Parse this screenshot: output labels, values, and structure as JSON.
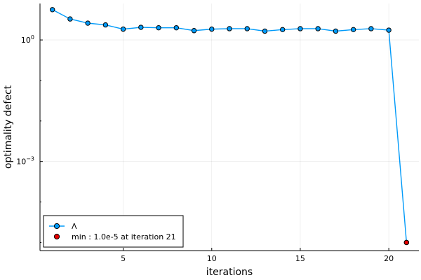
{
  "chart_data": {
    "type": "line",
    "title": "",
    "xlabel": "iterations",
    "ylabel": "optimality defect",
    "xlim": [
      0.3,
      21.7
    ],
    "ylim": [
      1e-05,
      8
    ],
    "yscale": "log",
    "x_ticks": [
      5,
      10,
      15,
      20
    ],
    "x_tick_labels": [
      "5",
      "10",
      "15",
      "20"
    ],
    "y_ticks": [
      0.001,
      1
    ],
    "y_tick_labels": [
      {
        "base": "10",
        "exp": "−3"
      },
      {
        "base": "10",
        "exp": "0"
      }
    ],
    "grid": true,
    "legend_position": "bottom-left",
    "series": [
      {
        "name": "Λ",
        "color": "#009af9",
        "marker": "circle",
        "x": [
          1,
          2,
          3,
          4,
          5,
          6,
          7,
          8,
          9,
          10,
          11,
          12,
          13,
          14,
          15,
          16,
          17,
          18,
          19,
          20,
          21
        ],
        "y": [
          5.6,
          3.3,
          2.6,
          2.35,
          1.85,
          2.05,
          2.0,
          2.0,
          1.7,
          1.85,
          1.9,
          1.9,
          1.65,
          1.8,
          1.9,
          1.9,
          1.65,
          1.8,
          1.9,
          1.75,
          1e-05
        ]
      },
      {
        "name": "min : 1.0e-5 at iteration 21",
        "color": "#e40000",
        "marker": "circle",
        "x": [
          21
        ],
        "y": [
          1e-05
        ]
      }
    ]
  }
}
